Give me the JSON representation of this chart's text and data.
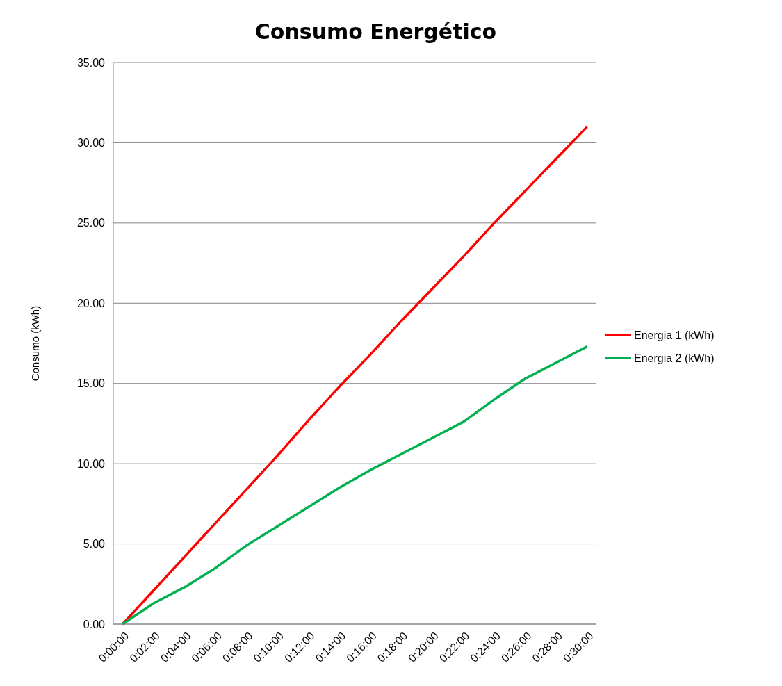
{
  "chart_data": {
    "type": "line",
    "title": "Consumo Energético",
    "ylabel": "Consumo (kWh)",
    "x": [
      0,
      0.0333333,
      0.0666667,
      0.1,
      0.1333333,
      0.1666667,
      0.2,
      0.2333333,
      0.2666667,
      0.3,
      0.3333333,
      0.3666667,
      0.4,
      0.4333333,
      0.4666667,
      0.5
    ],
    "series": [
      {
        "name": "Energia 1 (kWh)",
        "color": "#ff0000",
        "values": [
          0,
          2.1,
          4.2,
          6.3,
          8.4,
          10.5,
          12.7,
          14.8,
          16.8,
          18.9,
          20.9,
          22.9,
          25.0,
          27.0,
          29.0,
          31.0
        ]
      },
      {
        "name": "Energia 2 (kWh)",
        "color": "#00b050",
        "values": [
          0,
          1.3,
          2.3,
          3.5,
          4.9,
          6.1,
          7.3,
          8.5,
          9.6,
          10.6,
          11.6,
          12.6,
          14.0,
          15.3,
          16.3,
          17.3
        ]
      }
    ],
    "xlim": [
      -0.01,
      0.51
    ],
    "xticks": [
      {
        "value": 0,
        "label": "0:00:00"
      },
      {
        "value": 0.0333333,
        "label": "0:02:00"
      },
      {
        "value": 0.0666667,
        "label": "0:04:00"
      },
      {
        "value": 0.1,
        "label": "0:06:00"
      },
      {
        "value": 0.1333333,
        "label": "0:08:00"
      },
      {
        "value": 0.1666667,
        "label": "0:10:00"
      },
      {
        "value": 0.2,
        "label": "0:12:00"
      },
      {
        "value": 0.2333333,
        "label": "0:14:00"
      },
      {
        "value": 0.2666667,
        "label": "0:16:00"
      },
      {
        "value": 0.3,
        "label": "0:18:00"
      },
      {
        "value": 0.3333333,
        "label": "0:20:00"
      },
      {
        "value": 0.3666667,
        "label": "0:22:00"
      },
      {
        "value": 0.4,
        "label": "0:24:00"
      },
      {
        "value": 0.4333333,
        "label": "0:26:00"
      },
      {
        "value": 0.4666667,
        "label": "0:28:00"
      },
      {
        "value": 0.5,
        "label": "0:30:00"
      }
    ],
    "ylim": [
      0,
      35
    ],
    "yticks": [
      {
        "value": 0,
        "label": "0.00"
      },
      {
        "value": 5,
        "label": "5.00"
      },
      {
        "value": 10,
        "label": "10.00"
      },
      {
        "value": 15,
        "label": "15.00"
      },
      {
        "value": 20,
        "label": "20.00"
      },
      {
        "value": 25,
        "label": "25.00"
      },
      {
        "value": 30,
        "label": "30.00"
      },
      {
        "value": 35,
        "label": "35.00"
      }
    ],
    "grid": "y",
    "legend": "right",
    "marker": "none",
    "line_style": "solid"
  }
}
